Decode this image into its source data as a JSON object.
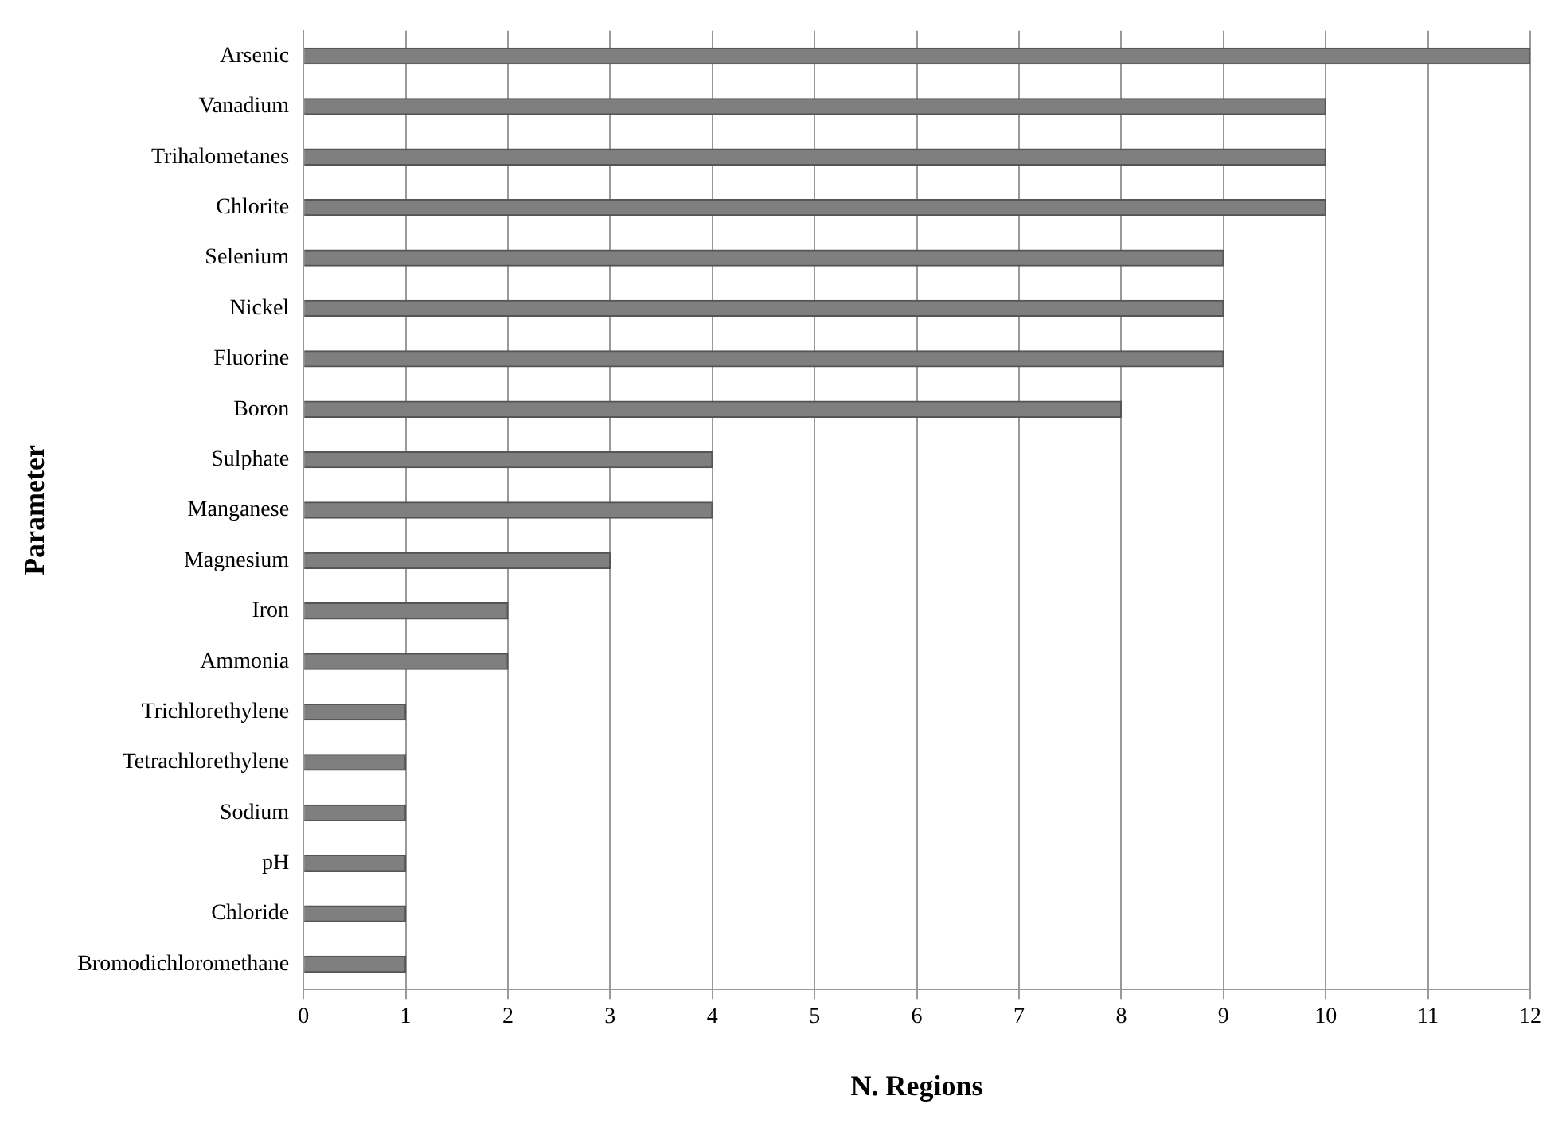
{
  "chart_data": {
    "type": "bar",
    "orientation": "horizontal",
    "xlabel": "N. Regions",
    "ylabel": "Parameter",
    "categories": [
      "Arsenic",
      "Vanadium",
      "Trihalometanes",
      "Chlorite",
      "Selenium",
      "Nickel",
      "Fluorine",
      "Boron",
      "Sulphate",
      "Manganese",
      "Magnesium",
      "Iron",
      "Ammonia",
      "Trichlorethylene",
      "Tetrachlorethylene",
      "Sodium",
      "pH",
      "Chloride",
      "Bromodichloromethane"
    ],
    "values": [
      12,
      10,
      10,
      10,
      9,
      9,
      9,
      8,
      4,
      4,
      3,
      2,
      2,
      1,
      1,
      1,
      1,
      1,
      1
    ],
    "color": "#7f7f7f",
    "xlim": [
      0,
      12
    ],
    "xticks": [
      0,
      1,
      2,
      3,
      4,
      5,
      6,
      7,
      8,
      9,
      10,
      11,
      12
    ],
    "grid": "x",
    "legend": false
  }
}
